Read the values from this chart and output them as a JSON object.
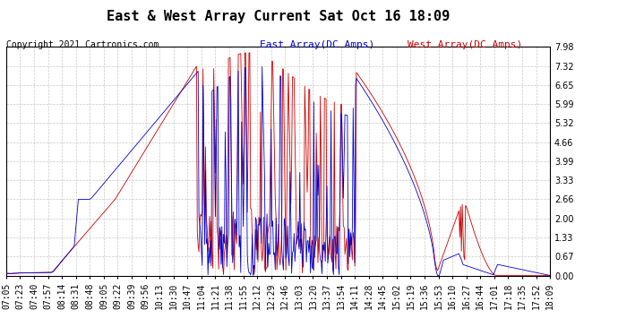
{
  "title": "East & West Array Current Sat Oct 16 18:09",
  "copyright": "Copyright 2021 Cartronics.com",
  "legend_east": "East Array(DC Amps)",
  "legend_west": "West Array(DC Amps)",
  "east_color": "#0000cc",
  "west_color": "#cc0000",
  "yticks": [
    0.0,
    0.67,
    1.33,
    2.0,
    2.66,
    3.33,
    3.99,
    4.66,
    5.32,
    5.99,
    6.65,
    7.32,
    7.98
  ],
  "ymax": 7.98,
  "ymin": 0.0,
  "bg_color": "#ffffff",
  "grid_color": "#c8c8c8",
  "title_fontsize": 11,
  "legend_fontsize": 8,
  "tick_fontsize": 7,
  "copyright_fontsize": 7,
  "xtick_labels": [
    "07:05",
    "07:23",
    "07:40",
    "07:57",
    "08:14",
    "08:31",
    "08:48",
    "09:05",
    "09:22",
    "09:39",
    "09:56",
    "10:13",
    "10:30",
    "10:47",
    "11:04",
    "11:21",
    "11:38",
    "11:55",
    "12:12",
    "12:29",
    "12:46",
    "13:03",
    "13:20",
    "13:37",
    "13:54",
    "14:11",
    "14:28",
    "14:45",
    "15:02",
    "15:19",
    "15:36",
    "15:53",
    "16:10",
    "16:27",
    "16:44",
    "17:01",
    "17:18",
    "17:35",
    "17:52",
    "18:09"
  ]
}
